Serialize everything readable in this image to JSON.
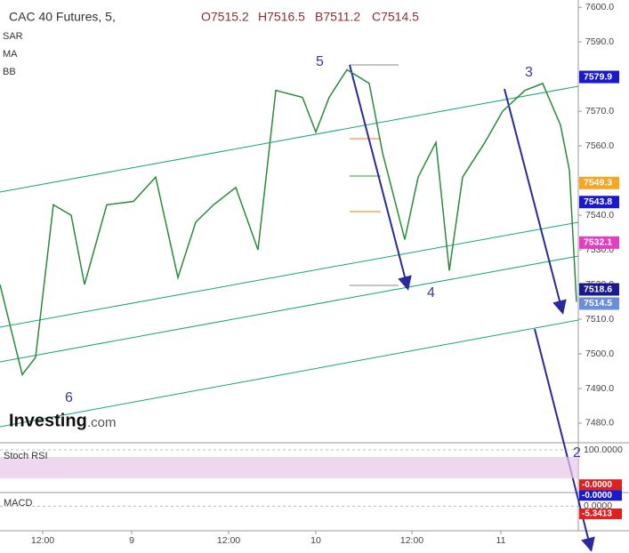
{
  "chart_data": {
    "type": "line",
    "title": "CAC 40 Futures, 5,",
    "ohlc": [
      "O7515.2",
      "H7516.5",
      "B7511.2",
      "C7514.5"
    ],
    "indicators": [
      "SAR",
      "MA",
      "BB"
    ],
    "logo": [
      "Investing",
      ".com"
    ],
    "wave_labels": [
      "5",
      "3",
      "4",
      "6",
      "2"
    ],
    "x": [
      0,
      5,
      8,
      12,
      16,
      19,
      24,
      30,
      35,
      40,
      44,
      48,
      53,
      58,
      62,
      68,
      71,
      74,
      78,
      83,
      86,
      91,
      94,
      98,
      101,
      104,
      109,
      113,
      118,
      122,
      126,
      128,
      129.6
    ],
    "values": [
      7520,
      7494,
      7499,
      7543,
      7540,
      7520,
      7543,
      7544,
      7551,
      7522,
      7538,
      7543,
      7548,
      7530,
      7576,
      7574,
      7564,
      7574,
      7582,
      7578,
      7558,
      7533,
      7551,
      7561,
      7524,
      7551,
      7561,
      7570,
      7576,
      7578,
      7566,
      7553,
      7515
    ],
    "color": "#2a8a3a",
    "xlim": [
      0,
      130
    ],
    "xticks": [
      {
        "value": 9.6,
        "label": "12:00"
      },
      {
        "value": 29.6,
        "label": "9"
      },
      {
        "value": 51.4,
        "label": "12:00"
      },
      {
        "value": 71,
        "label": "10"
      },
      {
        "value": 92.6,
        "label": "12:00"
      },
      {
        "value": 112.6,
        "label": "11"
      }
    ],
    "ylim": [
      7474.6,
      7602.1
    ],
    "yticks": [
      {
        "value": 7480,
        "label": "7480.0"
      },
      {
        "value": 7490,
        "label": "7490.0"
      },
      {
        "value": 7500,
        "label": "7500.0"
      },
      {
        "value": 7510,
        "label": "7510.0"
      },
      {
        "value": 7520,
        "label": "7520.0"
      },
      {
        "value": 7530,
        "label": "7530.0"
      },
      {
        "value": 7540,
        "label": "7540.0"
      },
      {
        "value": 7550,
        "label": "7550.0"
      },
      {
        "value": 7560,
        "label": "7560.0"
      },
      {
        "value": 7570,
        "label": "7570.0"
      },
      {
        "value": 7580,
        "label": "7580.0"
      },
      {
        "value": 7590,
        "label": "7590.0"
      },
      {
        "value": 7600,
        "label": "7600.0"
      }
    ],
    "price_tags": [
      {
        "value": 7579.9,
        "color": "#1a1acc"
      },
      {
        "value": 7549.3,
        "color": "#f5a623"
      },
      {
        "value": 7543.8,
        "color": "#1a1acc"
      },
      {
        "value": 7532.1,
        "color": "#e040c0"
      },
      {
        "value": 7518.6,
        "color": "#1a1a8a"
      },
      {
        "value": 7514.5,
        "color": "#6a8fd8"
      }
    ],
    "stoch_rsi": {
      "title": "Stoch RSI",
      "ylim": [
        -20,
        118
      ],
      "yticks": [
        {
          "value": 100,
          "label": "100.0000"
        }
      ],
      "tags": [
        {
          "value": 0,
          "label": "-0.0000",
          "color": "#e02020"
        },
        {
          "value": 0,
          "label": "-0.0000",
          "color": "#1a1acc"
        }
      ]
    },
    "macd": {
      "title": "MACD",
      "ylim": [
        -16,
        9
      ],
      "yticks": [
        {
          "value": 0,
          "label": "0.0000"
        }
      ],
      "tags": [
        {
          "value": -5.3413,
          "color": "#e02020"
        }
      ]
    }
  }
}
